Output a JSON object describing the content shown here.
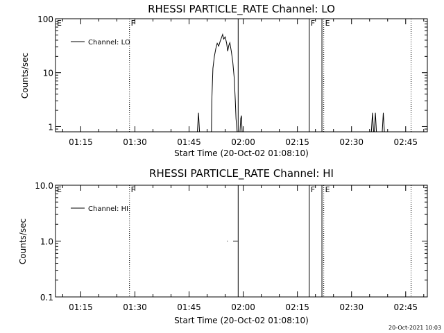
{
  "chart_data": [
    {
      "type": "line",
      "title": "RHESSI PARTICLE_RATE Channel: LO",
      "xlabel": "Start Time (20-Oct-02 01:08:10)",
      "ylabel": "Counts/sec",
      "x_range_minutes": [
        68,
        171
      ],
      "x_ticks": [
        {
          "t": 75,
          "label": "01:15"
        },
        {
          "t": 90,
          "label": "01:30"
        },
        {
          "t": 105,
          "label": "01:45"
        },
        {
          "t": 120,
          "label": "02:00"
        },
        {
          "t": 135,
          "label": "02:15"
        },
        {
          "t": 150,
          "label": "02:30"
        },
        {
          "t": 165,
          "label": "02:45"
        }
      ],
      "y_scale": "log",
      "ylim": [
        0.8,
        100
      ],
      "y_ticks": [
        {
          "v": 1,
          "label": "1"
        },
        {
          "v": 10,
          "label": "10"
        },
        {
          "v": 100,
          "label": "100"
        }
      ],
      "legend": {
        "label": "Channel: LO",
        "placement": "top-left"
      },
      "series": [
        {
          "name": "Channel: LO",
          "points": [
            [
              107.3,
              0.8
            ],
            [
              107.6,
              1.8
            ],
            [
              107.9,
              0.8
            ],
            [
              111.2,
              0.8
            ],
            [
              111.3,
              3.0
            ],
            [
              111.6,
              12
            ],
            [
              112,
              20
            ],
            [
              112.4,
              28
            ],
            [
              112.8,
              35
            ],
            [
              113.2,
              31
            ],
            [
              113.6,
              38
            ],
            [
              114,
              45
            ],
            [
              114.3,
              51
            ],
            [
              114.6,
              42
            ],
            [
              115,
              46
            ],
            [
              115.4,
              35
            ],
            [
              115.7,
              25
            ],
            [
              116,
              32
            ],
            [
              116.3,
              36
            ],
            [
              116.7,
              25
            ],
            [
              117.1,
              16
            ],
            [
              117.5,
              8
            ],
            [
              117.8,
              3
            ],
            [
              118,
              1.4
            ],
            [
              118.3,
              0.8
            ],
            [
              119.1,
              0.8
            ],
            [
              119.3,
              1.4
            ],
            [
              119.5,
              1.6
            ],
            [
              119.7,
              0.8
            ],
            [
              155.5,
              0.8
            ],
            [
              155.8,
              1.8
            ],
            [
              156.1,
              0.8
            ],
            [
              156.3,
              0.8
            ],
            [
              156.6,
              1.8
            ],
            [
              156.9,
              0.8
            ],
            [
              158.5,
              0.8
            ],
            [
              158.8,
              1.8
            ],
            [
              159.1,
              0.8
            ]
          ]
        }
      ],
      "event_lines": [
        {
          "t": 88.5,
          "style": "dotted",
          "flag": "F"
        },
        {
          "t": 118.6,
          "style": "solid",
          "flag": ""
        },
        {
          "t": 138.3,
          "style": "solid",
          "flag": "F"
        },
        {
          "t": 141.8,
          "style": "solid",
          "flag": ""
        },
        {
          "t": 142.3,
          "style": "dotted",
          "flag": "E"
        },
        {
          "t": 166.5,
          "style": "dotted",
          "flag": ""
        }
      ],
      "left_flag": "E"
    },
    {
      "type": "line",
      "title": "RHESSI PARTICLE_RATE Channel: HI",
      "xlabel": "Start Time (20-Oct-02 01:08:10)",
      "ylabel": "Counts/sec",
      "x_range_minutes": [
        68,
        171
      ],
      "x_ticks": [
        {
          "t": 75,
          "label": "01:15"
        },
        {
          "t": 90,
          "label": "01:30"
        },
        {
          "t": 105,
          "label": "01:45"
        },
        {
          "t": 120,
          "label": "02:00"
        },
        {
          "t": 135,
          "label": "02:15"
        },
        {
          "t": 150,
          "label": "02:30"
        },
        {
          "t": 165,
          "label": "02:45"
        }
      ],
      "y_scale": "log",
      "ylim": [
        0.1,
        10
      ],
      "y_ticks": [
        {
          "v": 0.1,
          "label": "0.1"
        },
        {
          "v": 1,
          "label": "1.0"
        },
        {
          "v": 10,
          "label": "10.0"
        }
      ],
      "legend": {
        "label": "Channel: HI",
        "placement": "top-left"
      },
      "series": [
        {
          "name": "Channel: HI",
          "segments": [
            [
              [
                115.5,
                1.0
              ],
              [
                115.7,
                1.0
              ]
            ],
            [
              [
                117.2,
                1.0
              ],
              [
                118.5,
                1.0
              ]
            ]
          ]
        }
      ],
      "event_lines": [
        {
          "t": 88.5,
          "style": "dotted",
          "flag": "F"
        },
        {
          "t": 118.6,
          "style": "solid",
          "flag": ""
        },
        {
          "t": 138.3,
          "style": "solid",
          "flag": "F"
        },
        {
          "t": 141.8,
          "style": "solid",
          "flag": ""
        },
        {
          "t": 142.3,
          "style": "dotted",
          "flag": "E"
        },
        {
          "t": 166.5,
          "style": "dotted",
          "flag": ""
        }
      ],
      "left_flag": "E"
    }
  ],
  "footer": {
    "timestamp": "20-Oct-2021 10:03"
  }
}
